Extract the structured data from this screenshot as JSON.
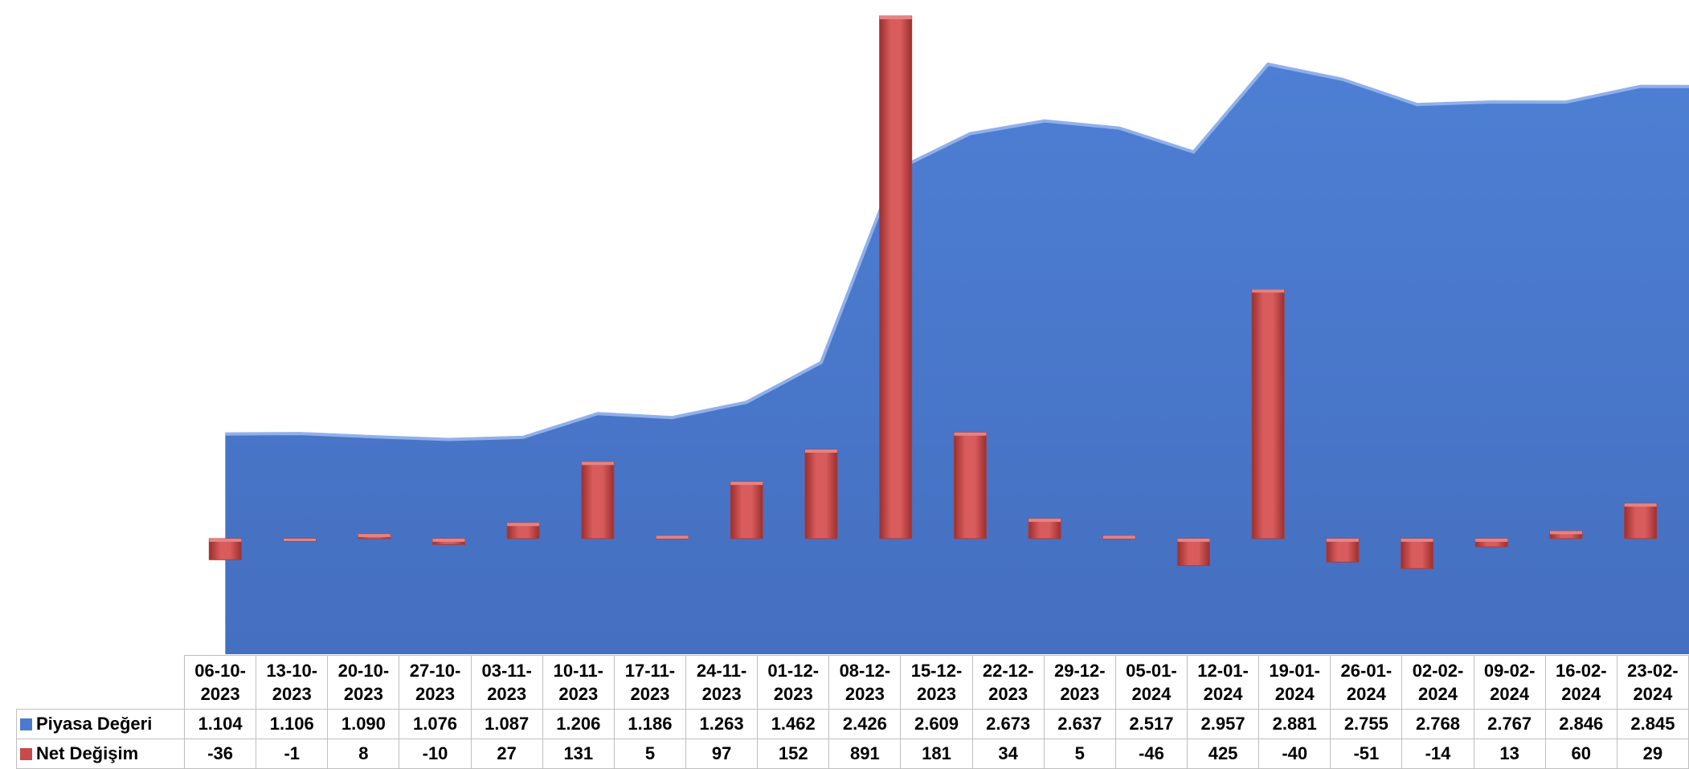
{
  "chart_data": {
    "type": "area+bar",
    "categories": [
      "06-10-2023",
      "13-10-2023",
      "20-10-2023",
      "27-10-2023",
      "03-11-2023",
      "10-11-2023",
      "17-11-2023",
      "24-11-2023",
      "01-12-2023",
      "08-12-2023",
      "15-12-2023",
      "22-12-2023",
      "29-12-2023",
      "05-01-2024",
      "12-01-2024",
      "19-01-2024",
      "26-01-2024",
      "02-02-2024",
      "09-02-2024",
      "16-02-2024",
      "23-02-2024"
    ],
    "series": [
      {
        "name": "Piyasa Değeri",
        "type": "area",
        "color": "#4a7bd0",
        "values": [
          1104,
          1106,
          1090,
          1076,
          1087,
          1206,
          1186,
          1263,
          1462,
          2426,
          2609,
          2673,
          2637,
          2517,
          2957,
          2881,
          2755,
          2768,
          2767,
          2846,
          2845
        ],
        "labels": [
          "1.104",
          "1.106",
          "1.090",
          "1.076",
          "1.087",
          "1.206",
          "1.186",
          "1.263",
          "1.462",
          "2.426",
          "2.609",
          "2.673",
          "2.637",
          "2.517",
          "2.957",
          "2.881",
          "2.755",
          "2.768",
          "2.767",
          "2.846",
          "2.845"
        ]
      },
      {
        "name": "Net Değişim",
        "type": "bar",
        "color": "#c84b4b",
        "values": [
          -36,
          -1,
          8,
          -10,
          27,
          131,
          5,
          97,
          152,
          891,
          181,
          34,
          5,
          -46,
          425,
          -40,
          -51,
          -14,
          13,
          60,
          29
        ],
        "labels": [
          "-36",
          "-1",
          "8",
          "-10",
          "27",
          "131",
          "5",
          "97",
          "152",
          "891",
          "181",
          "34",
          "5",
          "-46",
          "425",
          "-40",
          "-51",
          "-14",
          "13",
          "60",
          "29"
        ]
      }
    ],
    "data_table": true,
    "legend": "in data table",
    "grid": false
  }
}
